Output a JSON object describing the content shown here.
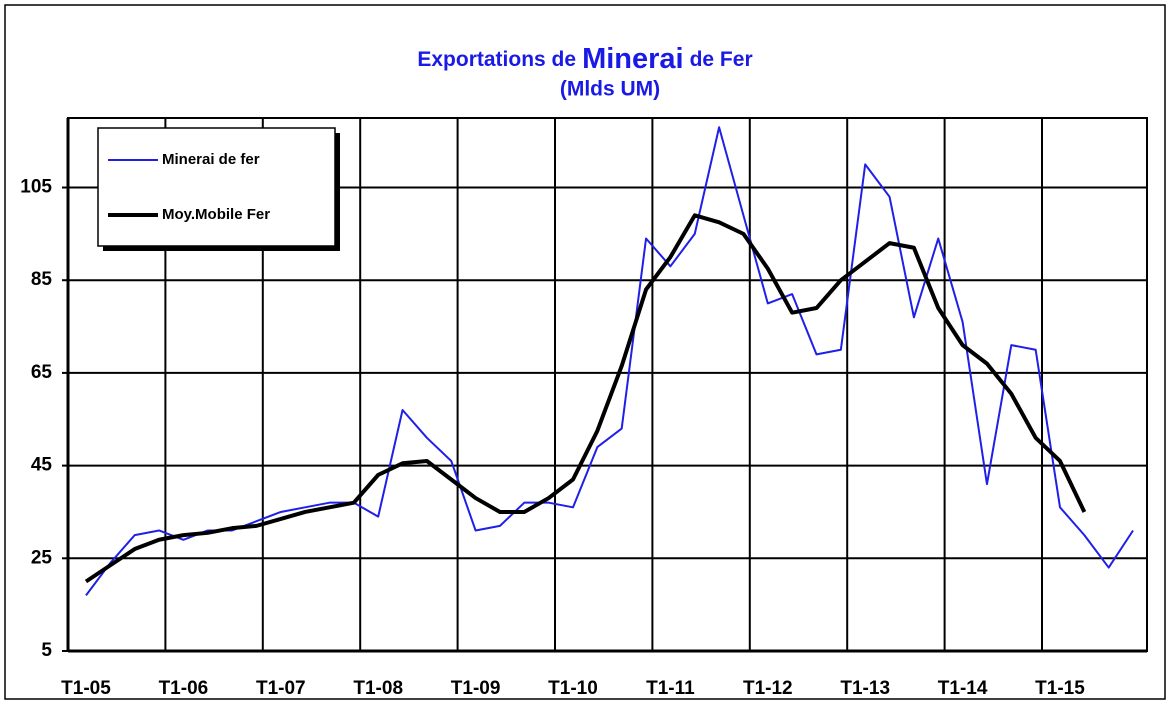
{
  "chart_data": {
    "type": "line",
    "title": [
      "Exportations de",
      "Minerai",
      "de Fer"
    ],
    "subtitle": "(Mlds UM)",
    "categories": [
      "T1-05",
      null,
      null,
      null,
      "T1-06",
      null,
      null,
      null,
      "T1-07",
      null,
      null,
      null,
      "T1-08",
      null,
      null,
      null,
      "T1-09",
      null,
      null,
      null,
      "T1-10",
      null,
      null,
      null,
      "T1-11",
      null,
      null,
      null,
      "T1-12",
      null,
      null,
      null,
      "T1-13",
      null,
      null,
      null,
      "T1-14",
      null,
      null,
      null,
      "T1-15",
      null,
      null,
      null
    ],
    "series": [
      {
        "name": "Minerai de fer",
        "color": "#1f1fe8",
        "width": 2,
        "values": [
          17,
          24,
          30,
          31,
          29,
          31,
          31,
          33,
          35,
          36,
          37,
          37,
          34,
          57,
          51,
          46,
          31,
          32,
          37,
          37,
          36,
          49,
          53,
          94,
          88,
          95,
          118,
          99,
          80,
          82,
          69,
          70,
          110,
          103,
          77,
          94,
          76,
          41,
          71,
          70,
          36,
          30,
          23,
          31
        ]
      },
      {
        "name": "Moy.Mobile Fer",
        "color": "#000000",
        "width": 4,
        "values": [
          20,
          23.5,
          27,
          29,
          30,
          30.5,
          31.5,
          32,
          33.5,
          35,
          36,
          37,
          43,
          45.5,
          46,
          42,
          38,
          35,
          35,
          38,
          42,
          52.5,
          66.5,
          83,
          90,
          99,
          97.5,
          95,
          87.5,
          78,
          79,
          85,
          89,
          93,
          92,
          79,
          71,
          67,
          60.5,
          51,
          46,
          35,
          null,
          null
        ]
      }
    ],
    "ylim": [
      5,
      120
    ],
    "yticks": [
      5,
      25,
      45,
      65,
      85,
      105
    ],
    "grid": true,
    "legend": "top-left"
  }
}
